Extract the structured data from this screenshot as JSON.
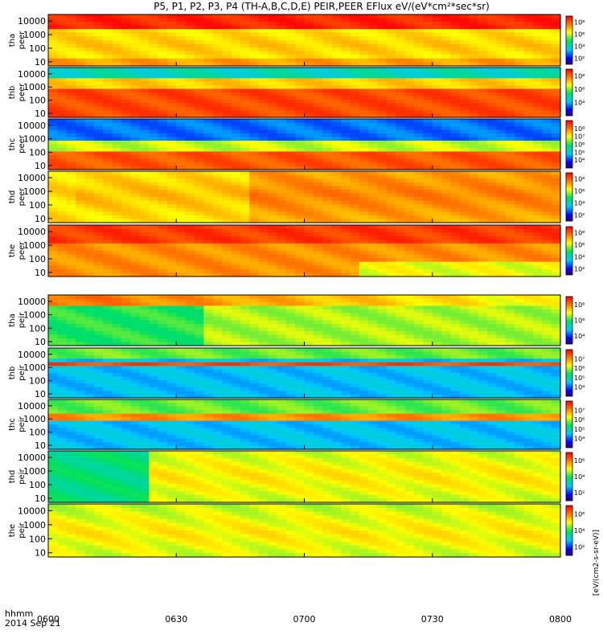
{
  "chart_data": {
    "type": "heatmap",
    "title": "P5, P1, P2, P3, P4 (TH-A,B,C,D,E) PEIR,PEER EFlux eV/(eV*cm²*sec*sr)",
    "time_axis": {
      "label_line1": "hhmm",
      "label_line2": "2014 Sep 21",
      "range": [
        "0600",
        "0800"
      ],
      "ticks": [
        "0600",
        "0630",
        "0700",
        "0730",
        "0800"
      ]
    },
    "energy_axis": {
      "unit": "eV",
      "scale": "log",
      "range": [
        5,
        30000
      ],
      "ticks": [
        "10",
        "100",
        "1000",
        "10000"
      ]
    },
    "colorbar_unit": "[eV/(cm2-s-sr-eV)]",
    "panels": [
      {
        "probe": "tha",
        "species": "peer",
        "colorbar_ticks": [
          "10²",
          "10⁴",
          "10⁶",
          "10⁸"
        ],
        "colorbar_range": [
          1,
          9
        ]
      },
      {
        "probe": "thb",
        "species": "peer",
        "colorbar_ticks": [
          "10⁴",
          "10⁶",
          "10⁸"
        ],
        "colorbar_range": [
          2,
          9
        ]
      },
      {
        "probe": "thc",
        "species": "peer",
        "colorbar_ticks": [
          "10⁴",
          "10⁵",
          "10⁶",
          "10⁷",
          "10⁸"
        ],
        "colorbar_range": [
          3,
          9
        ]
      },
      {
        "probe": "thd",
        "species": "peer",
        "colorbar_ticks": [
          "10²",
          "10⁴",
          "10⁶",
          "10⁸"
        ],
        "colorbar_range": [
          1,
          9
        ]
      },
      {
        "probe": "the",
        "species": "peer",
        "colorbar_ticks": [
          "10²",
          "10⁴",
          "10⁶",
          "10⁸"
        ],
        "colorbar_range": [
          1,
          9
        ]
      },
      {
        "probe": "tha",
        "species": "peir",
        "colorbar_ticks": [
          "10⁴",
          "10⁶",
          "10⁸"
        ],
        "colorbar_range": [
          3,
          9
        ]
      },
      {
        "probe": "thb",
        "species": "peir",
        "colorbar_ticks": [
          "10⁴",
          "10⁵",
          "10⁶",
          "10⁷"
        ],
        "colorbar_range": [
          3,
          8
        ]
      },
      {
        "probe": "thc",
        "species": "peir",
        "colorbar_ticks": [
          "10⁴",
          "10⁵",
          "10⁶",
          "10⁷"
        ],
        "colorbar_range": [
          3,
          8
        ]
      },
      {
        "probe": "thd",
        "species": "peir",
        "colorbar_ticks": [
          "10²",
          "10⁴",
          "10⁶"
        ],
        "colorbar_range": [
          1,
          7
        ]
      },
      {
        "probe": "the",
        "species": "peir",
        "colorbar_ticks": [
          "10²",
          "10⁴",
          "10⁶"
        ],
        "colorbar_range": [
          1,
          7
        ]
      }
    ]
  }
}
